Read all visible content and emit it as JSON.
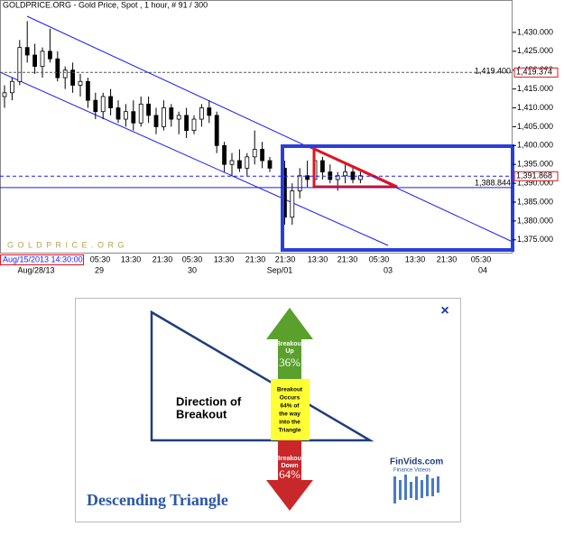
{
  "chart_data": {
    "type": "candlestick",
    "title": "GOLDPRICE.ORG - Gold Price, Spot , 1 hour, # 91 / 300",
    "watermark": "G O L D P R I C E . O R G",
    "cursor_date": "Aug/15/2013 14:30:00",
    "open": [
      1413,
      1414,
      1417,
      1426,
      1424,
      1421,
      1425,
      1423,
      1418,
      1420,
      1416,
      1417,
      1412,
      1409,
      1413,
      1410,
      1407,
      1409,
      1406,
      1411,
      1408,
      1405,
      1410,
      1407,
      1408,
      1404,
      1407,
      1410,
      1408,
      1400,
      1395,
      1396,
      1394,
      1397,
      1399,
      1396,
      1394,
      1381,
      1388,
      1392,
      1391,
      1396,
      1393,
      1391,
      1392,
      1393,
      1391
    ],
    "high": [
      1416,
      1418,
      1428,
      1433,
      1427,
      1426,
      1431,
      1425,
      1421,
      1422,
      1419,
      1418,
      1414,
      1414,
      1415,
      1412,
      1411,
      1412,
      1413,
      1413,
      1410,
      1412,
      1411,
      1409,
      1410,
      1408,
      1411,
      1412,
      1409,
      1401,
      1398,
      1399,
      1398,
      1404,
      1401,
      1397,
      1396,
      1390,
      1394,
      1396,
      1399,
      1397,
      1395,
      1393,
      1395,
      1394,
      1393
    ],
    "low": [
      1410,
      1412,
      1416,
      1422,
      1419,
      1418,
      1422,
      1417,
      1415,
      1414,
      1413,
      1410,
      1407,
      1407,
      1408,
      1406,
      1405,
      1404,
      1405,
      1406,
      1403,
      1404,
      1405,
      1403,
      1402,
      1403,
      1405,
      1406,
      1398,
      1393,
      1392,
      1393,
      1392,
      1395,
      1394,
      1393,
      1379,
      1379,
      1386,
      1389,
      1390,
      1391,
      1390,
      1388,
      1390,
      1390,
      1390
    ],
    "close": [
      1414,
      1417,
      1426,
      1424,
      1421,
      1425,
      1423,
      1418,
      1420,
      1416,
      1417,
      1412,
      1409,
      1413,
      1410,
      1407,
      1409,
      1406,
      1411,
      1408,
      1405,
      1410,
      1407,
      1408,
      1404,
      1407,
      1410,
      1408,
      1400,
      1395,
      1396,
      1394,
      1397,
      1399,
      1396,
      1394,
      1381,
      1388,
      1392,
      1391,
      1396,
      1393,
      1391,
      1392,
      1393,
      1391,
      1392
    ],
    "up_color": "#ffffff",
    "down_color": "#000000",
    "ylim": [
      1371.6,
      1438.6
    ],
    "yticks": [
      {
        "value": 1375,
        "label": "1,375.000"
      },
      {
        "value": 1380,
        "label": "1,380.000"
      },
      {
        "value": 1385,
        "label": "1,385.000"
      },
      {
        "value": 1390,
        "label": "1,390.000"
      },
      {
        "value": 1395,
        "label": "1,395.000"
      },
      {
        "value": 1400,
        "label": "1,400.000"
      },
      {
        "value": 1405,
        "label": "1,405.000"
      },
      {
        "value": 1410,
        "label": "1,410.000"
      },
      {
        "value": 1415,
        "label": "1,415.000"
      },
      {
        "value": 1420,
        "label": "1,420.000"
      },
      {
        "value": 1425,
        "label": "1,425.000"
      },
      {
        "value": 1430,
        "label": "1,430.000"
      }
    ],
    "x_time_labels": [
      "05:30",
      "13:30",
      "21:30",
      "05:30",
      "13:30",
      "21:30",
      "21:30",
      "13:30",
      "21:30",
      "05:30",
      "13:30",
      "21:30",
      "05:30"
    ],
    "x_date_labels": [
      "Aug/28/13",
      "29",
      "30",
      "Sep/01",
      "03",
      "04"
    ],
    "reference_lines": [
      {
        "value": 1419.4,
        "label": "1,419.400"
      },
      {
        "value": 1391.868,
        "label": "1,391.868"
      },
      {
        "value": 1388.844,
        "label": "1,388.844"
      }
    ],
    "price_label": {
      "value": 1419.374,
      "label": "1,419.374"
    }
  },
  "infographic": {
    "title": "Descending Triangle",
    "direction": [
      "Direction of",
      "Breakout"
    ],
    "up_label": [
      "Breakout",
      "Up"
    ],
    "up_pct": "36%",
    "middle": [
      "Breakout",
      "Occurs",
      "64% of",
      "the way",
      "into the",
      "Triangle"
    ],
    "down_label": [
      "Breakout",
      "Down"
    ],
    "down_pct": "64%",
    "close": "×",
    "logo": "FinVids.com",
    "logo_sub": "Finance Videos"
  }
}
